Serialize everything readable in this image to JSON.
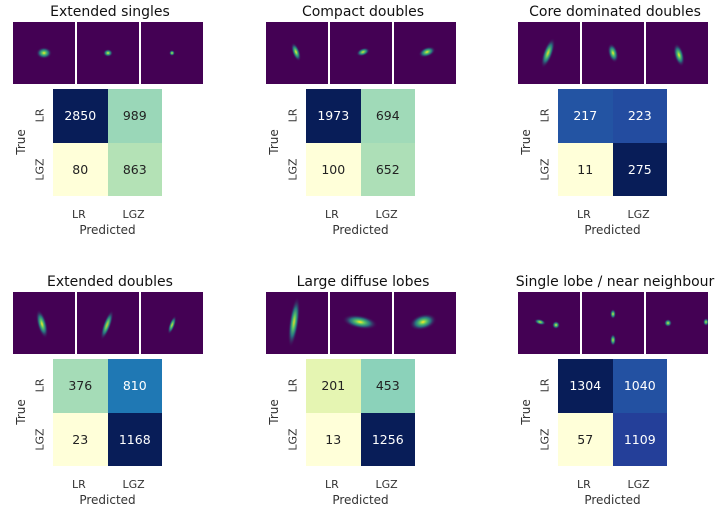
{
  "chart_data": [
    {
      "type": "heatmap",
      "title": "Extended singles",
      "xlabel": "Predicted",
      "ylabel": "True",
      "x_ticks": [
        "LR",
        "LGZ"
      ],
      "y_ticks": [
        "LR",
        "LGZ"
      ],
      "values": [
        [
          2850,
          989
        ],
        [
          80,
          863
        ]
      ],
      "colormap": "YlGnBu"
    },
    {
      "type": "heatmap",
      "title": "Compact doubles",
      "xlabel": "Predicted",
      "ylabel": "True",
      "x_ticks": [
        "LR",
        "LGZ"
      ],
      "y_ticks": [
        "LR",
        "LGZ"
      ],
      "values": [
        [
          1973,
          694
        ],
        [
          100,
          652
        ]
      ],
      "colormap": "YlGnBu"
    },
    {
      "type": "heatmap",
      "title": "Core dominated doubles",
      "xlabel": "Predicted",
      "ylabel": "True",
      "x_ticks": [
        "LR",
        "LGZ"
      ],
      "y_ticks": [
        "LR",
        "LGZ"
      ],
      "values": [
        [
          217,
          223
        ],
        [
          11,
          275
        ]
      ],
      "colormap": "YlGnBu"
    },
    {
      "type": "heatmap",
      "title": "Extended doubles",
      "xlabel": "Predicted",
      "ylabel": "True",
      "x_ticks": [
        "LR",
        "LGZ"
      ],
      "y_ticks": [
        "LR",
        "LGZ"
      ],
      "values": [
        [
          376,
          810
        ],
        [
          23,
          1168
        ]
      ],
      "colormap": "YlGnBu"
    },
    {
      "type": "heatmap",
      "title": "Large diffuse lobes",
      "xlabel": "Predicted",
      "ylabel": "True",
      "x_ticks": [
        "LR",
        "LGZ"
      ],
      "y_ticks": [
        "LR",
        "LGZ"
      ],
      "values": [
        [
          201,
          453
        ],
        [
          13,
          1256
        ]
      ],
      "colormap": "YlGnBu"
    },
    {
      "type": "heatmap",
      "title": "Single lobe / near neighbour",
      "xlabel": "Predicted",
      "ylabel": "True",
      "x_ticks": [
        "LR",
        "LGZ"
      ],
      "y_ticks": [
        "LR",
        "LGZ"
      ],
      "values": [
        [
          1304,
          1040
        ],
        [
          57,
          1109
        ]
      ],
      "colormap": "YlGnBu"
    }
  ],
  "colors": {
    "thumbnail_background": "#440154",
    "matrix_low": "#ffffd9",
    "matrix_high": "#081d58"
  }
}
